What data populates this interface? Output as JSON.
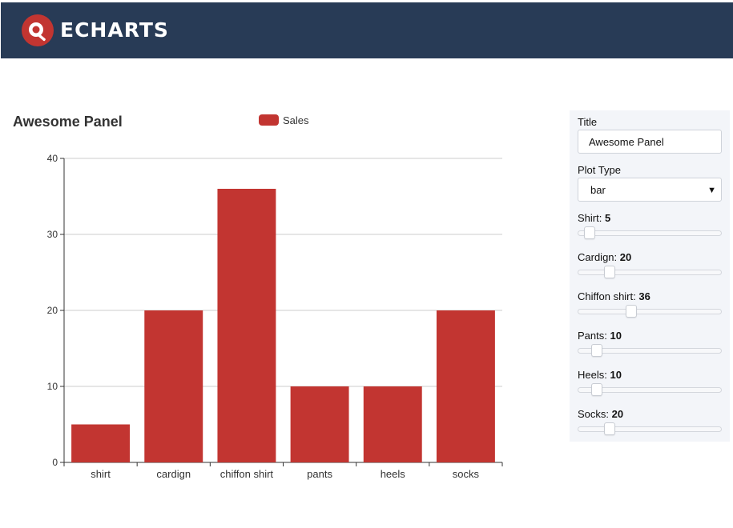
{
  "header": {
    "brand": "ECHARTS"
  },
  "colors": {
    "header_bg": "#283b56",
    "bar": "#c23531",
    "logo": "#c23531"
  },
  "chart_data": {
    "type": "bar",
    "title": "Awesome Panel",
    "categories": [
      "shirt",
      "cardign",
      "chiffon shirt",
      "pants",
      "heels",
      "socks"
    ],
    "series": [
      {
        "name": "Sales",
        "values": [
          5,
          20,
          36,
          10,
          10,
          20
        ]
      }
    ],
    "ylim": [
      0,
      40
    ],
    "yticks": [
      0,
      10,
      20,
      30,
      40
    ],
    "grid": true,
    "legend": "top-center"
  },
  "controls": {
    "title_label": "Title",
    "title_value": "Awesome Panel",
    "plot_type_label": "Plot Type",
    "plot_type_value": "bar",
    "sliders": [
      {
        "label": "Shirt:",
        "value": "5",
        "level": 5,
        "max": 100
      },
      {
        "label": "Cardign:",
        "value": "20",
        "level": 20,
        "max": 100
      },
      {
        "label": "Chiffon shirt:",
        "value": "36",
        "level": 36,
        "max": 100
      },
      {
        "label": "Pants:",
        "value": "10",
        "level": 10,
        "max": 100
      },
      {
        "label": "Heels:",
        "value": "10",
        "level": 10,
        "max": 100
      },
      {
        "label": "Socks:",
        "value": "20",
        "level": 20,
        "max": 100
      }
    ]
  }
}
